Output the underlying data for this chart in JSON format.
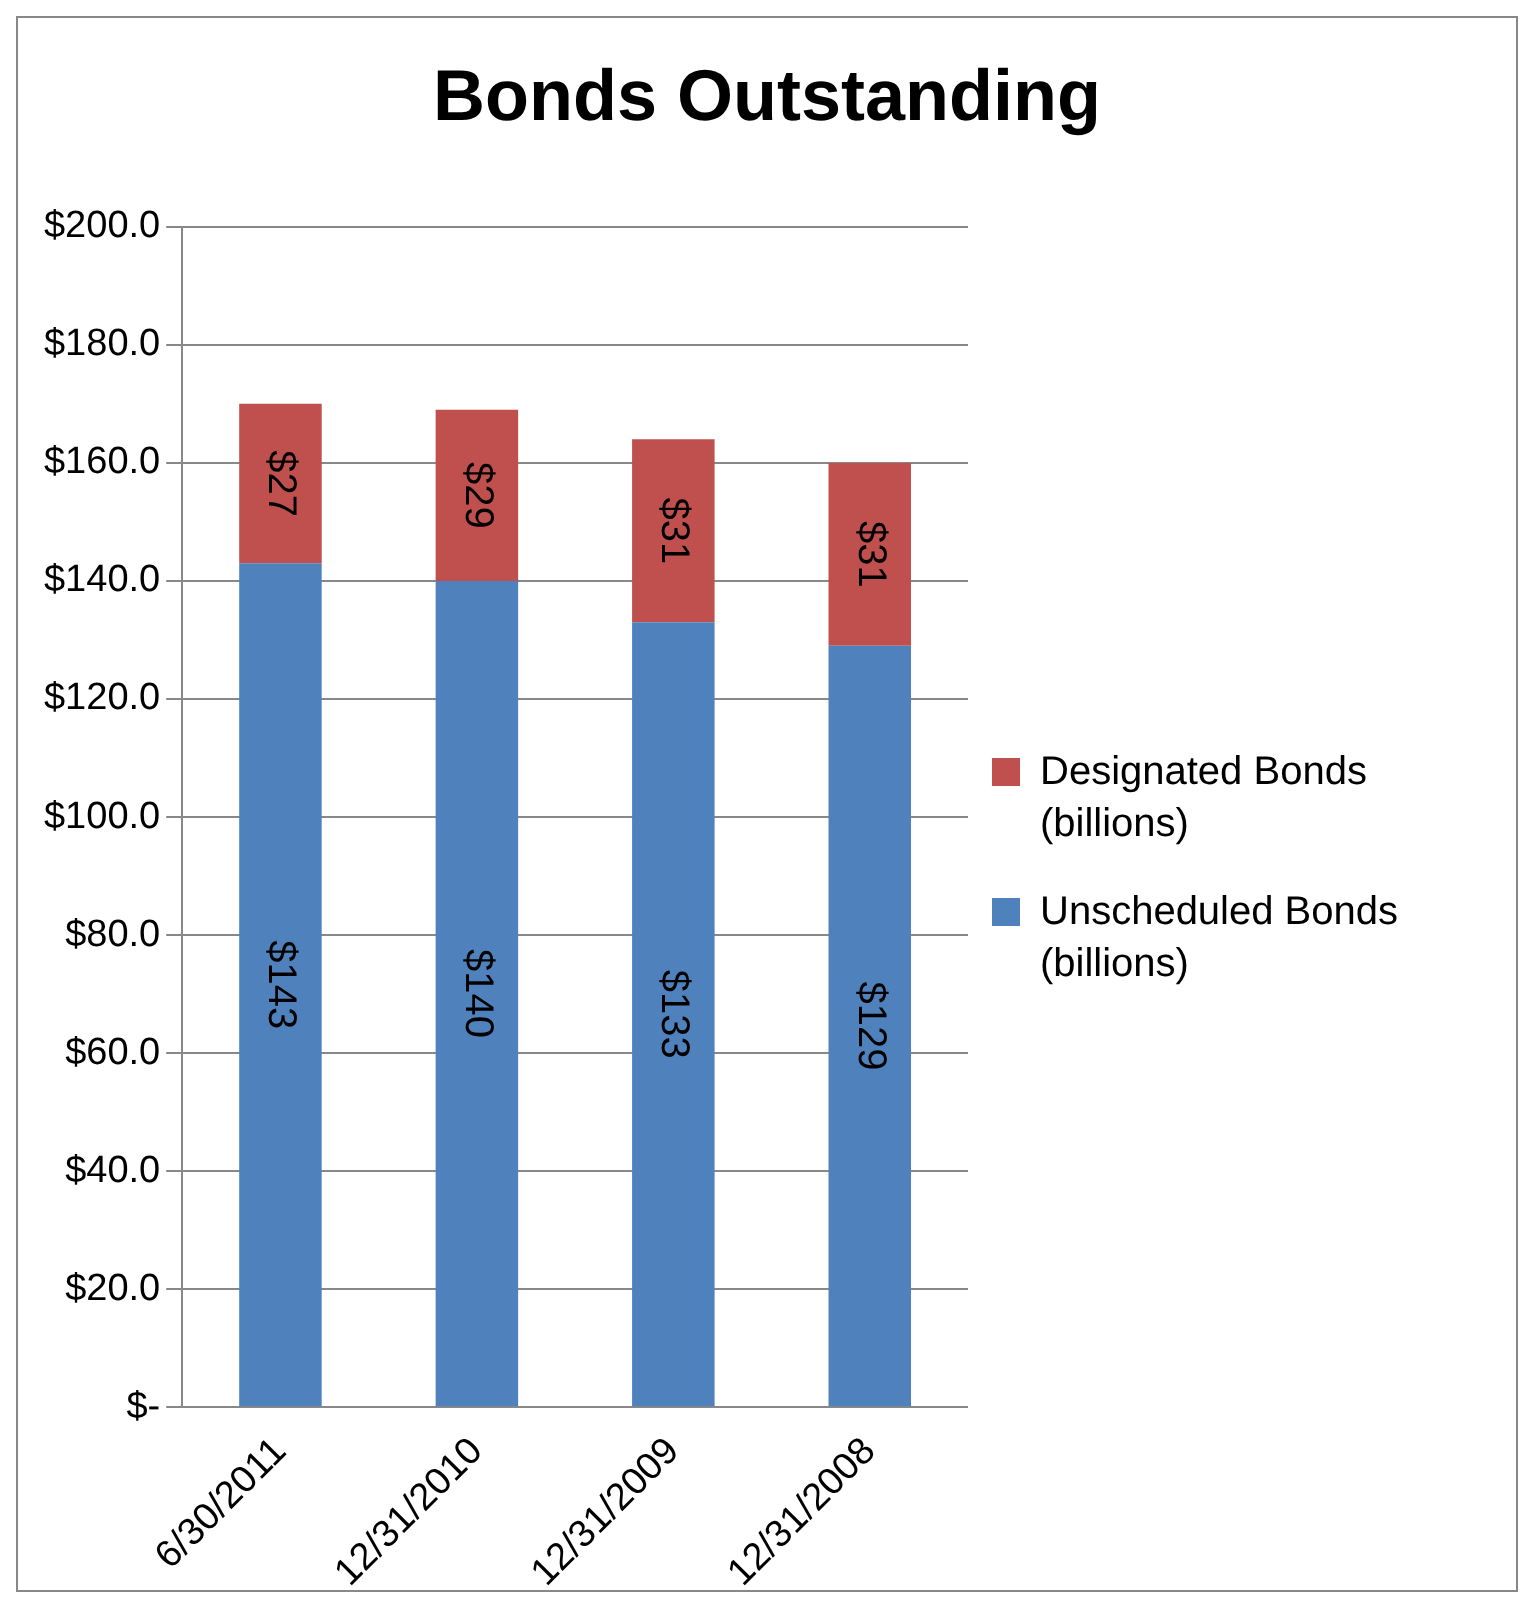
{
  "chart_data": {
    "type": "bar",
    "title": "Bonds Outstanding",
    "stacked": true,
    "categories": [
      "6/30/2011",
      "12/31/2010",
      "12/31/2009",
      "12/31/2008"
    ],
    "series": [
      {
        "name": "Unscheduled Bonds (billions)",
        "color": "#4f81bd",
        "values": [
          143,
          140,
          133,
          129
        ],
        "value_labels": [
          "$143",
          "$140",
          "$133",
          "$129"
        ]
      },
      {
        "name": "Designated Bonds (billions)",
        "color": "#c0504d",
        "values": [
          27,
          29,
          31,
          31
        ],
        "value_labels": [
          "$27",
          "$29",
          "$31",
          "$31"
        ]
      }
    ],
    "ylim": [
      0,
      200
    ],
    "yticks": [
      {
        "value": 0,
        "label": "$-"
      },
      {
        "value": 20,
        "label": "$20.0"
      },
      {
        "value": 40,
        "label": "$40.0"
      },
      {
        "value": 60,
        "label": "$60.0"
      },
      {
        "value": 80,
        "label": "$80.0"
      },
      {
        "value": 100,
        "label": "$100.0"
      },
      {
        "value": 120,
        "label": "$120.0"
      },
      {
        "value": 140,
        "label": "$140.0"
      },
      {
        "value": 160,
        "label": "$160.0"
      },
      {
        "value": 180,
        "label": "$180.0"
      },
      {
        "value": 200,
        "label": "$200.0"
      }
    ],
    "grid": "y",
    "legend": "right"
  }
}
